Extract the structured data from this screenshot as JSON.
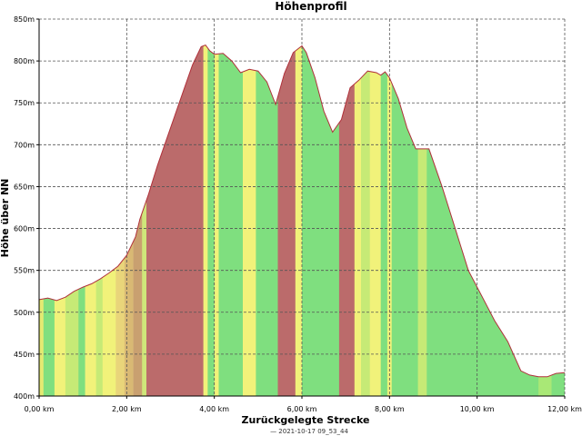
{
  "chart_data": {
    "type": "area",
    "title": "Höhenprofil",
    "xlabel": "Zurückgelegte Strecke",
    "ylabel": "Höhe über NN",
    "caption": "— 2021-10-17 09_53_44",
    "xlim": [
      0,
      12
    ],
    "ylim": [
      400,
      850
    ],
    "x_ticks": [
      0,
      2,
      4,
      6,
      8,
      10,
      12
    ],
    "x_tick_labels": [
      "0,00 km",
      "2,00 km",
      "4,00 km",
      "6,00 km",
      "8,00 km",
      "10,00 km",
      "12,00 km"
    ],
    "y_ticks": [
      400,
      450,
      500,
      550,
      600,
      650,
      700,
      750,
      800,
      850
    ],
    "y_tick_labels": [
      "400m",
      "450m",
      "500m",
      "550m",
      "600m",
      "650m",
      "700m",
      "750m",
      "800m",
      "850m"
    ],
    "grid": true,
    "series": [
      {
        "x": [
          0,
          0.2,
          0.4,
          0.6,
          0.8,
          1.0,
          1.2,
          1.4,
          1.6,
          1.8,
          2.0,
          2.2,
          2.3,
          2.5,
          2.7,
          2.9,
          3.1,
          3.3,
          3.5,
          3.7,
          3.8,
          3.9,
          4.0,
          4.2,
          4.4,
          4.6,
          4.8,
          5.0,
          5.2,
          5.4,
          5.6,
          5.8,
          6.0,
          6.1,
          6.3,
          6.5,
          6.7,
          6.9,
          7.1,
          7.3,
          7.5,
          7.7,
          7.8,
          7.9,
          8.0,
          8.2,
          8.4,
          8.6,
          8.9,
          9.2,
          9.5,
          9.8,
          10.1,
          10.4,
          10.7,
          11.0,
          11.2,
          11.4,
          11.6,
          11.8,
          12.0
        ],
        "y": [
          515,
          517,
          514,
          518,
          525,
          530,
          534,
          540,
          547,
          555,
          568,
          590,
          611,
          641,
          675,
          705,
          735,
          765,
          795,
          817,
          819,
          812,
          808,
          809,
          800,
          786,
          790,
          788,
          775,
          748,
          785,
          810,
          818,
          810,
          780,
          740,
          715,
          730,
          768,
          777,
          788,
          786,
          783,
          787,
          780,
          755,
          720,
          695,
          695,
          650,
          600,
          550,
          520,
          490,
          465,
          430,
          425,
          423,
          423,
          427,
          428
        ]
      }
    ],
    "gradient_bands": [
      {
        "x0": 0.0,
        "x1": 0.1,
        "color": "#e4ea72"
      },
      {
        "x0": 0.1,
        "x1": 0.35,
        "color": "#7fdf7f"
      },
      {
        "x0": 0.35,
        "x1": 0.6,
        "color": "#f1f27a"
      },
      {
        "x0": 0.6,
        "x1": 0.9,
        "color": "#c6ea76"
      },
      {
        "x0": 0.9,
        "x1": 1.05,
        "color": "#7fdf7f"
      },
      {
        "x0": 1.05,
        "x1": 1.3,
        "color": "#f1f27a"
      },
      {
        "x0": 1.3,
        "x1": 1.45,
        "color": "#c6ea76"
      },
      {
        "x0": 1.45,
        "x1": 1.75,
        "color": "#f1f27a"
      },
      {
        "x0": 1.75,
        "x1": 1.95,
        "color": "#e9d57a"
      },
      {
        "x0": 1.95,
        "x1": 2.15,
        "color": "#d9b974"
      },
      {
        "x0": 2.15,
        "x1": 2.35,
        "color": "#c9a070"
      },
      {
        "x0": 2.35,
        "x1": 2.45,
        "color": "#cfe67a"
      },
      {
        "x0": 2.45,
        "x1": 3.75,
        "color": "#bb6b6b"
      },
      {
        "x0": 3.75,
        "x1": 3.85,
        "color": "#f1f27a"
      },
      {
        "x0": 3.85,
        "x1": 4.0,
        "color": "#7fdf7f"
      },
      {
        "x0": 4.0,
        "x1": 4.1,
        "color": "#f1f27a"
      },
      {
        "x0": 4.1,
        "x1": 4.65,
        "color": "#7fdf7f"
      },
      {
        "x0": 4.65,
        "x1": 4.95,
        "color": "#f1f27a"
      },
      {
        "x0": 4.95,
        "x1": 5.45,
        "color": "#7fdf7f"
      },
      {
        "x0": 5.45,
        "x1": 5.85,
        "color": "#bb6b6b"
      },
      {
        "x0": 5.85,
        "x1": 6.0,
        "color": "#f1f27a"
      },
      {
        "x0": 6.0,
        "x1": 6.85,
        "color": "#7fdf7f"
      },
      {
        "x0": 6.85,
        "x1": 7.2,
        "color": "#bb6b6b"
      },
      {
        "x0": 7.2,
        "x1": 7.35,
        "color": "#f1f27a"
      },
      {
        "x0": 7.35,
        "x1": 7.55,
        "color": "#c6ea76"
      },
      {
        "x0": 7.55,
        "x1": 7.8,
        "color": "#f1f27a"
      },
      {
        "x0": 7.8,
        "x1": 7.95,
        "color": "#7fdf7f"
      },
      {
        "x0": 7.95,
        "x1": 8.05,
        "color": "#f1f27a"
      },
      {
        "x0": 8.05,
        "x1": 8.65,
        "color": "#7fdf7f"
      },
      {
        "x0": 8.65,
        "x1": 8.85,
        "color": "#c6ea76"
      },
      {
        "x0": 8.85,
        "x1": 11.4,
        "color": "#7fdf7f"
      },
      {
        "x0": 11.4,
        "x1": 11.7,
        "color": "#a9e876"
      },
      {
        "x0": 11.7,
        "x1": 12.0,
        "color": "#7fdf7f"
      }
    ],
    "colors": {
      "outline": "#b0303a",
      "grid": "#555555",
      "axis": "#000000"
    }
  }
}
